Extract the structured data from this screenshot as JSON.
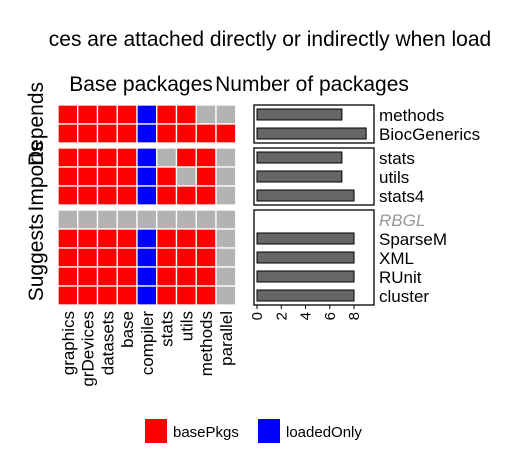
{
  "chart_data": {
    "type": "heatmap",
    "title": "ces are attached directly or indirectly when load",
    "left_panel_title": "Base packages",
    "right_panel_title": "Number of packages",
    "columns": [
      "graphics",
      "grDevices",
      "datasets",
      "base",
      "compiler",
      "stats",
      "utils",
      "methods",
      "parallel"
    ],
    "groups": [
      {
        "name": "Depends",
        "rows": [
          {
            "pkg": "methods",
            "cells": [
              "basePkgs",
              "basePkgs",
              "basePkgs",
              "basePkgs",
              "loadedOnly",
              "basePkgs",
              "basePkgs",
              "none",
              "none"
            ],
            "count": 7,
            "muted": false
          },
          {
            "pkg": "BiocGenerics",
            "cells": [
              "basePkgs",
              "basePkgs",
              "basePkgs",
              "basePkgs",
              "loadedOnly",
              "basePkgs",
              "basePkgs",
              "basePkgs",
              "basePkgs"
            ],
            "count": 9,
            "muted": false
          }
        ]
      },
      {
        "name": "Imports",
        "rows": [
          {
            "pkg": "stats",
            "cells": [
              "basePkgs",
              "basePkgs",
              "basePkgs",
              "basePkgs",
              "loadedOnly",
              "none",
              "basePkgs",
              "basePkgs",
              "none"
            ],
            "count": 7,
            "muted": false
          },
          {
            "pkg": "utils",
            "cells": [
              "basePkgs",
              "basePkgs",
              "basePkgs",
              "basePkgs",
              "loadedOnly",
              "basePkgs",
              "none",
              "basePkgs",
              "none"
            ],
            "count": 7,
            "muted": false
          },
          {
            "pkg": "stats4",
            "cells": [
              "basePkgs",
              "basePkgs",
              "basePkgs",
              "basePkgs",
              "loadedOnly",
              "basePkgs",
              "basePkgs",
              "basePkgs",
              "none"
            ],
            "count": 8,
            "muted": false
          }
        ]
      },
      {
        "name": "Suggests",
        "rows": [
          {
            "pkg": "RBGL",
            "cells": [
              "none",
              "none",
              "none",
              "none",
              "none",
              "none",
              "none",
              "none",
              "none"
            ],
            "count": 0,
            "muted": true
          },
          {
            "pkg": "SparseM",
            "cells": [
              "basePkgs",
              "basePkgs",
              "basePkgs",
              "basePkgs",
              "loadedOnly",
              "basePkgs",
              "basePkgs",
              "basePkgs",
              "none"
            ],
            "count": 8,
            "muted": false
          },
          {
            "pkg": "XML",
            "cells": [
              "basePkgs",
              "basePkgs",
              "basePkgs",
              "basePkgs",
              "loadedOnly",
              "basePkgs",
              "basePkgs",
              "basePkgs",
              "none"
            ],
            "count": 8,
            "muted": false
          },
          {
            "pkg": "RUnit",
            "cells": [
              "basePkgs",
              "basePkgs",
              "basePkgs",
              "basePkgs",
              "loadedOnly",
              "basePkgs",
              "basePkgs",
              "basePkgs",
              "none"
            ],
            "count": 8,
            "muted": false
          },
          {
            "pkg": "cluster",
            "cells": [
              "basePkgs",
              "basePkgs",
              "basePkgs",
              "basePkgs",
              "loadedOnly",
              "basePkgs",
              "basePkgs",
              "basePkgs",
              "none"
            ],
            "count": 8,
            "muted": false
          }
        ]
      }
    ],
    "count_axis": {
      "ticks": [
        0,
        2,
        4,
        6,
        8
      ],
      "xlim": [
        0,
        9.4
      ]
    },
    "legend": {
      "placement": "bottom",
      "entries": [
        {
          "key": "basePkgs",
          "label": "basePkgs",
          "color": "#ff0000"
        },
        {
          "key": "loadedOnly",
          "label": "loadedOnly",
          "color": "#0000ff"
        }
      ]
    },
    "colors": {
      "basePkgs": "#ff0000",
      "loadedOnly": "#0000ff",
      "none": "#b3b3b3",
      "bar": "#666666",
      "muted_label": "#999999"
    }
  }
}
